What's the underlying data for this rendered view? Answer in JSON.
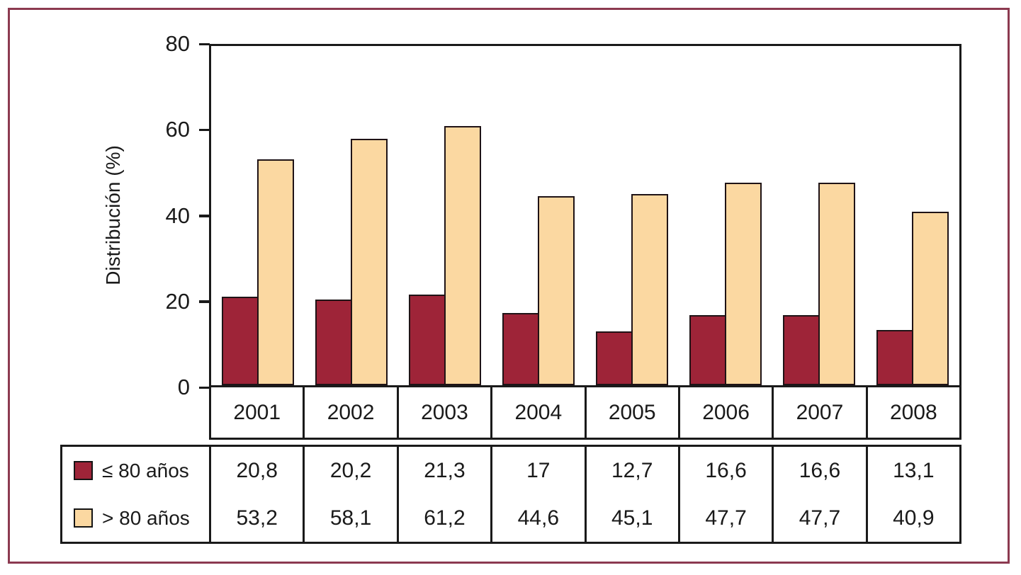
{
  "colors": {
    "frame_border": "#8c3a50",
    "axis": "#1a1a1a",
    "series1_fill": "#9e2438",
    "series2_fill": "#fbd8a1",
    "bar_outline": "#1f1316"
  },
  "chart_data": {
    "type": "bar",
    "title": "",
    "categories": [
      "2001",
      "2002",
      "2003",
      "2004",
      "2005",
      "2006",
      "2007",
      "2008"
    ],
    "series": [
      {
        "name": "≤ 80 años",
        "color": "#9e2438",
        "values": [
          20.8,
          20.2,
          21.3,
          17,
          12.7,
          16.6,
          16.6,
          13.1
        ]
      },
      {
        "name": "> 80 años",
        "color": "#fbd8a1",
        "values": [
          53.2,
          58.1,
          61.2,
          44.6,
          45.1,
          47.7,
          47.7,
          40.9
        ]
      }
    ],
    "xlabel": "",
    "ylabel": "Distribución (%)",
    "ylim": [
      0,
      80
    ],
    "yticks": [
      0,
      20,
      40,
      60,
      80
    ],
    "grid": false,
    "legend_position": "table-left"
  },
  "table": {
    "row_labels": [
      "≤ 80 años",
      "> 80 años"
    ],
    "rows": [
      [
        "20,8",
        "20,2",
        "21,3",
        "17",
        "12,7",
        "16,6",
        "16,6",
        "13,1"
      ],
      [
        "53,2",
        "58,1",
        "61,2",
        "44,6",
        "45,1",
        "47,7",
        "47,7",
        "40,9"
      ]
    ]
  }
}
